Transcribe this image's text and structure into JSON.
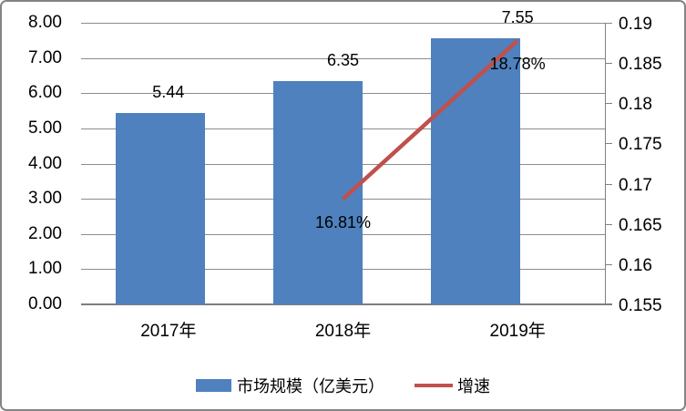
{
  "chart_data": {
    "type": "bar",
    "title": "",
    "categories": [
      "2017年",
      "2018年",
      "2019年"
    ],
    "series": [
      {
        "name": "市场规模（亿美元）",
        "type": "bar",
        "axis": "left",
        "values": [
          5.44,
          6.35,
          7.55
        ],
        "data_labels": [
          "5.44",
          "6.35",
          "7.55"
        ],
        "color": "#4E81BD"
      },
      {
        "name": "增速",
        "type": "line",
        "axis": "right",
        "values": [
          null,
          0.1681,
          0.1878
        ],
        "data_labels": [
          null,
          "16.81%",
          "18.78%"
        ],
        "color": "#C0504D"
      }
    ],
    "left_axis": {
      "min": 0,
      "max": 8,
      "step": 1,
      "tick_labels": [
        "8.00",
        "7.00",
        "6.00",
        "5.00",
        "4.00",
        "3.00",
        "2.00",
        "1.00",
        "0.00"
      ]
    },
    "right_axis": {
      "min": 0.155,
      "max": 0.19,
      "step": 0.005,
      "tick_labels": [
        "0.19",
        "0.185",
        "0.18",
        "0.175",
        "0.17",
        "0.165",
        "0.16",
        "0.155"
      ]
    },
    "grid": true,
    "legend_position": "bottom"
  },
  "legend": {
    "items": [
      {
        "label": "市场规模（亿美元）",
        "marker": "bar-swatch",
        "color": "#4E81BD"
      },
      {
        "label": "增速",
        "marker": "line-swatch",
        "color": "#C0504D"
      }
    ]
  },
  "colors": {
    "bar": "#4E81BD",
    "line": "#C0504D",
    "gridline": "#8C8C8C",
    "axis": "#808080",
    "text": "#000000",
    "chart_border": "#848484",
    "background": "#FFFFFF"
  }
}
